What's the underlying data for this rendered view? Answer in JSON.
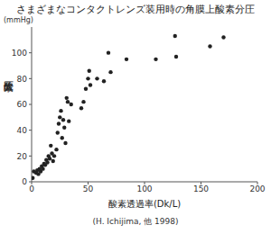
{
  "chart_data": {
    "type": "scatter",
    "title": "さまざまなコンタクトレンズ装用時の角膜上酸素分圧",
    "y_unit": "(mmHg)",
    "y_label": "酸素分圧",
    "x_label": "酸素透過率(Dk/L)",
    "source": "(H. Ichijima, 他 1998)",
    "x": [
      1,
      2,
      4,
      5,
      6,
      7,
      8,
      9,
      10,
      11,
      12,
      13,
      14,
      15,
      16,
      17,
      18,
      19,
      20,
      22,
      23,
      24,
      25,
      26,
      27,
      28,
      29,
      30,
      31,
      32,
      33,
      35,
      44,
      46,
      48,
      50,
      51,
      52,
      58,
      64,
      68,
      70,
      84,
      110,
      127,
      128,
      158,
      170
    ],
    "values": [
      3,
      8,
      7,
      9,
      6,
      10,
      8,
      12,
      10,
      14,
      13,
      17,
      15,
      20,
      18,
      28,
      22,
      16,
      20,
      25,
      38,
      45,
      50,
      55,
      34,
      48,
      42,
      30,
      65,
      62,
      47,
      60,
      57,
      62,
      72,
      80,
      86,
      75,
      80,
      78,
      100,
      85,
      95,
      95,
      113,
      97,
      105,
      112
    ],
    "color": "#222222",
    "marker": "circle",
    "xlim": [
      0,
      200
    ],
    "xticks": [
      0,
      50,
      100,
      150,
      200
    ],
    "ylim": [
      0,
      120
    ],
    "yticks": [
      0,
      20,
      40,
      60,
      80,
      100
    ],
    "grid": false
  }
}
